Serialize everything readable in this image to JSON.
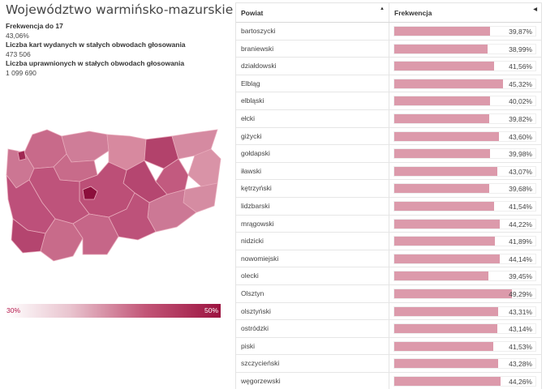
{
  "title": "Województwo warmińsko-mazurskie",
  "stats": [
    {
      "label": "Frekwencja do 17",
      "value": "43,06%"
    },
    {
      "label": "Liczba kart wydanych w stałych obwodach głosowania",
      "value": "473 506"
    },
    {
      "label": "Liczba uprawnionych w stałych obwodach głosowania",
      "value": "1 099 690"
    }
  ],
  "legend": {
    "min": "30%",
    "max": "50%",
    "color_low": "#ffffff",
    "color_high": "#9c1340"
  },
  "table": {
    "headers": {
      "powiat": "Powiat",
      "frekwencja": "Frekwencja"
    },
    "bar_color": "#dc9aab",
    "scale_max_percent": 59,
    "rows": [
      {
        "name": "bartoszycki",
        "value": "39,87%",
        "pct": 39.87
      },
      {
        "name": "braniewski",
        "value": "38,99%",
        "pct": 38.99
      },
      {
        "name": "działdowski",
        "value": "41,56%",
        "pct": 41.56
      },
      {
        "name": "Elbląg",
        "value": "45,32%",
        "pct": 45.32
      },
      {
        "name": "elbląski",
        "value": "40,02%",
        "pct": 40.02
      },
      {
        "name": "ełcki",
        "value": "39,82%",
        "pct": 39.82
      },
      {
        "name": "giżycki",
        "value": "43,60%",
        "pct": 43.6
      },
      {
        "name": "gołdapski",
        "value": "39,98%",
        "pct": 39.98
      },
      {
        "name": "iławski",
        "value": "43,07%",
        "pct": 43.07
      },
      {
        "name": "kętrzyński",
        "value": "39,68%",
        "pct": 39.68
      },
      {
        "name": "lidzbarski",
        "value": "41,54%",
        "pct": 41.54
      },
      {
        "name": "mrągowski",
        "value": "44,22%",
        "pct": 44.22
      },
      {
        "name": "nidzicki",
        "value": "41,89%",
        "pct": 41.89
      },
      {
        "name": "nowomiejski",
        "value": "44,14%",
        "pct": 44.14
      },
      {
        "name": "olecki",
        "value": "39,45%",
        "pct": 39.45
      },
      {
        "name": "Olsztyn",
        "value": "49,29%",
        "pct": 49.29
      },
      {
        "name": "olsztyński",
        "value": "43,31%",
        "pct": 43.31
      },
      {
        "name": "ostródzki",
        "value": "43,14%",
        "pct": 43.14
      },
      {
        "name": "piski",
        "value": "41,53%",
        "pct": 41.53
      },
      {
        "name": "szczycieński",
        "value": "43,28%",
        "pct": 43.28
      },
      {
        "name": "węgorzewski",
        "value": "44,26%",
        "pct": 44.26
      }
    ]
  }
}
